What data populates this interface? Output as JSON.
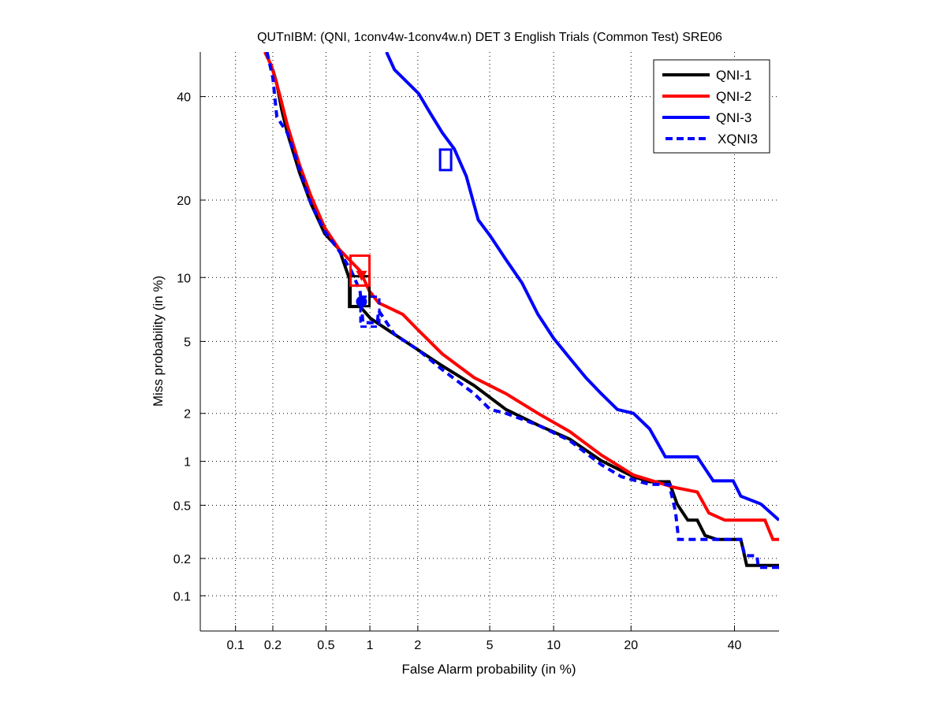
{
  "chart_data": {
    "type": "line",
    "scale": "normal-deviate (DET)",
    "title": "QUTnIBM: (QNI, 1conv4w-1conv4w.n) DET 3 English Trials (Common Test) SRE06",
    "xlabel": "False Alarm probability (in %)",
    "ylabel": "Miss probability (in %)",
    "xlim": [
      0.05,
      50
    ],
    "ylim": [
      0.05,
      50
    ],
    "xticks": [
      0.1,
      0.2,
      0.5,
      1,
      2,
      5,
      10,
      20,
      40
    ],
    "xtick_labels": [
      "0.1",
      "0.2",
      "0.5",
      "1",
      "2",
      "5",
      "10",
      "20",
      "40"
    ],
    "yticks": [
      0.1,
      0.2,
      0.5,
      1,
      2,
      5,
      10,
      20,
      40
    ],
    "ytick_labels": [
      "0.1",
      "0.2",
      "0.5",
      "1",
      "2",
      "5",
      "10",
      "20",
      "40"
    ],
    "grid": true,
    "legend_position": "top-right",
    "series": [
      {
        "name": "QNI-1",
        "color": "#000000",
        "style": "solid",
        "x": [
          0.2,
          0.215,
          0.234,
          0.259,
          0.32,
          0.39,
          0.49,
          0.62,
          0.73,
          0.73,
          0.86,
          1.01,
          1.44,
          2.02,
          2.78,
          4.15,
          6.03,
          8.52,
          11.7,
          15.6,
          20.4,
          23.1,
          26.6,
          28.1,
          30.2,
          32.1,
          33.7,
          36.2,
          41.4,
          42.7,
          50
        ],
        "y": [
          46.0,
          42.8,
          37.3,
          32.3,
          24.7,
          19.4,
          15.1,
          13.1,
          9.85,
          7.4,
          7.4,
          6.5,
          5.43,
          4.51,
          3.72,
          2.9,
          2.11,
          1.7,
          1.39,
          1.01,
          0.79,
          0.73,
          0.73,
          0.51,
          0.39,
          0.39,
          0.3,
          0.28,
          0.28,
          0.176,
          0.176
        ],
        "marker": {
          "shape": "square",
          "x": 0.86,
          "y": 8.7
        }
      },
      {
        "name": "QNI-2",
        "color": "#ff0000",
        "style": "solid",
        "x": [
          0.173,
          0.195,
          0.225,
          0.259,
          0.32,
          0.39,
          0.49,
          0.62,
          0.86,
          0.99,
          1.14,
          1.62,
          2.02,
          2.78,
          4.15,
          6.03,
          8.52,
          11.7,
          15.6,
          20.4,
          27.4,
          32.1,
          34.5,
          37.9,
          46.8,
          48.6,
          50
        ],
        "y": [
          50,
          46.9,
          40.7,
          33.9,
          26.1,
          20.6,
          15.9,
          13.1,
          10.7,
          8.74,
          7.7,
          6.8,
          5.68,
          4.31,
          3.21,
          2.61,
          2.0,
          1.55,
          1.1,
          0.81,
          0.67,
          0.62,
          0.44,
          0.39,
          0.39,
          0.28,
          0.28
        ],
        "marker": {
          "shape": "square",
          "x": 0.86,
          "y": 10.7
        }
      },
      {
        "name": "QNI-3",
        "color": "#0000ff",
        "style": "solid",
        "x": [
          1.28,
          1.44,
          2.02,
          2.37,
          2.78,
          3.24,
          3.77,
          4.36,
          5.03,
          6.03,
          7.2,
          8.52,
          10.0,
          11.7,
          13.6,
          15.6,
          17.9,
          20.4,
          23.1,
          25.9,
          32.1,
          35.4,
          39.7,
          41.4,
          45.9,
          50,
          50
        ],
        "y": [
          50,
          46.0,
          40.7,
          36.4,
          32.3,
          29.1,
          24.0,
          17.0,
          14.8,
          11.9,
          9.46,
          6.8,
          5.19,
          4.1,
          3.21,
          2.61,
          2.11,
          2.0,
          1.61,
          1.07,
          1.07,
          0.74,
          0.74,
          0.58,
          0.51,
          0.39,
          0.39
        ],
        "marker": {
          "shape": "square",
          "x": 2.9,
          "y": 27
        }
      },
      {
        "name": "XQNI3",
        "color": "#0000ff",
        "style": "dashed",
        "x": [
          0.18,
          0.2,
          0.215,
          0.259,
          0.32,
          0.39,
          0.49,
          0.62,
          0.75,
          0.86,
          0.9,
          1.12,
          1.14,
          1.44,
          2.02,
          2.78,
          4.15,
          5.03,
          6.03,
          8.52,
          11.7,
          15.6,
          18.5,
          23.1,
          26.6,
          27.8,
          28.4,
          41.4,
          42.3,
          45.0,
          45.3,
          50
        ],
        "y": [
          50,
          44.2,
          35.6,
          32.3,
          25.4,
          19.4,
          15.4,
          12.9,
          10.7,
          8.74,
          6.2,
          6.2,
          7.1,
          5.43,
          4.51,
          3.55,
          2.61,
          2.11,
          2.0,
          1.7,
          1.36,
          0.95,
          0.79,
          0.7,
          0.7,
          0.45,
          0.28,
          0.28,
          0.21,
          0.21,
          0.17,
          0.17
        ],
        "marker": {
          "shape": "square",
          "x": 1.0,
          "y": 7.0
        }
      }
    ],
    "decision_points": [
      {
        "series": "QNI-2",
        "shape": "triangle",
        "x": 0.88,
        "y": 10.2
      },
      {
        "series": "XQNI3",
        "shape": "circle",
        "x": 0.88,
        "y": 7.8
      }
    ]
  }
}
